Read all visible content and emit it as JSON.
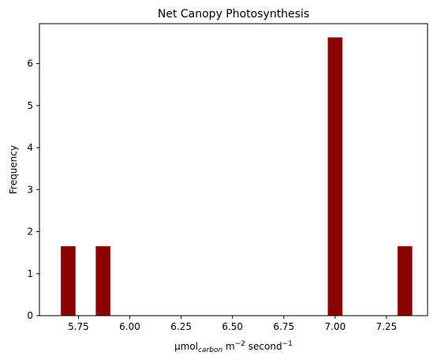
{
  "chart_data": {
    "type": "bar",
    "title": "Net Canopy Photosynthesis",
    "xlabel": {
      "base": "µmol",
      "sub": "carbon",
      "mid": " m",
      "sup1": "−2",
      "mid2": " second",
      "sup2": "−1"
    },
    "ylabel": "Frequency",
    "xlim": [
      5.56,
      7.45
    ],
    "ylim": [
      0,
      6.95
    ],
    "x_ticks": [
      5.75,
      6.0,
      6.25,
      6.5,
      6.75,
      7.0,
      7.25
    ],
    "x_tick_labels": [
      "5.75",
      "6.00",
      "6.25",
      "6.50",
      "6.75",
      "7.00",
      "7.25"
    ],
    "y_ticks": [
      0,
      1,
      2,
      3,
      4,
      5,
      6
    ],
    "y_tick_labels": [
      "0",
      "1",
      "2",
      "3",
      "4",
      "5",
      "6"
    ],
    "bar_color": "#8b0000",
    "bars": [
      {
        "x0": 5.665,
        "x1": 5.735,
        "value": 1.65
      },
      {
        "x0": 5.835,
        "x1": 5.905,
        "value": 1.65
      },
      {
        "x0": 6.965,
        "x1": 7.035,
        "value": 6.62
      },
      {
        "x0": 7.305,
        "x1": 7.375,
        "value": 1.65
      }
    ],
    "grid": false,
    "legend": "none"
  }
}
